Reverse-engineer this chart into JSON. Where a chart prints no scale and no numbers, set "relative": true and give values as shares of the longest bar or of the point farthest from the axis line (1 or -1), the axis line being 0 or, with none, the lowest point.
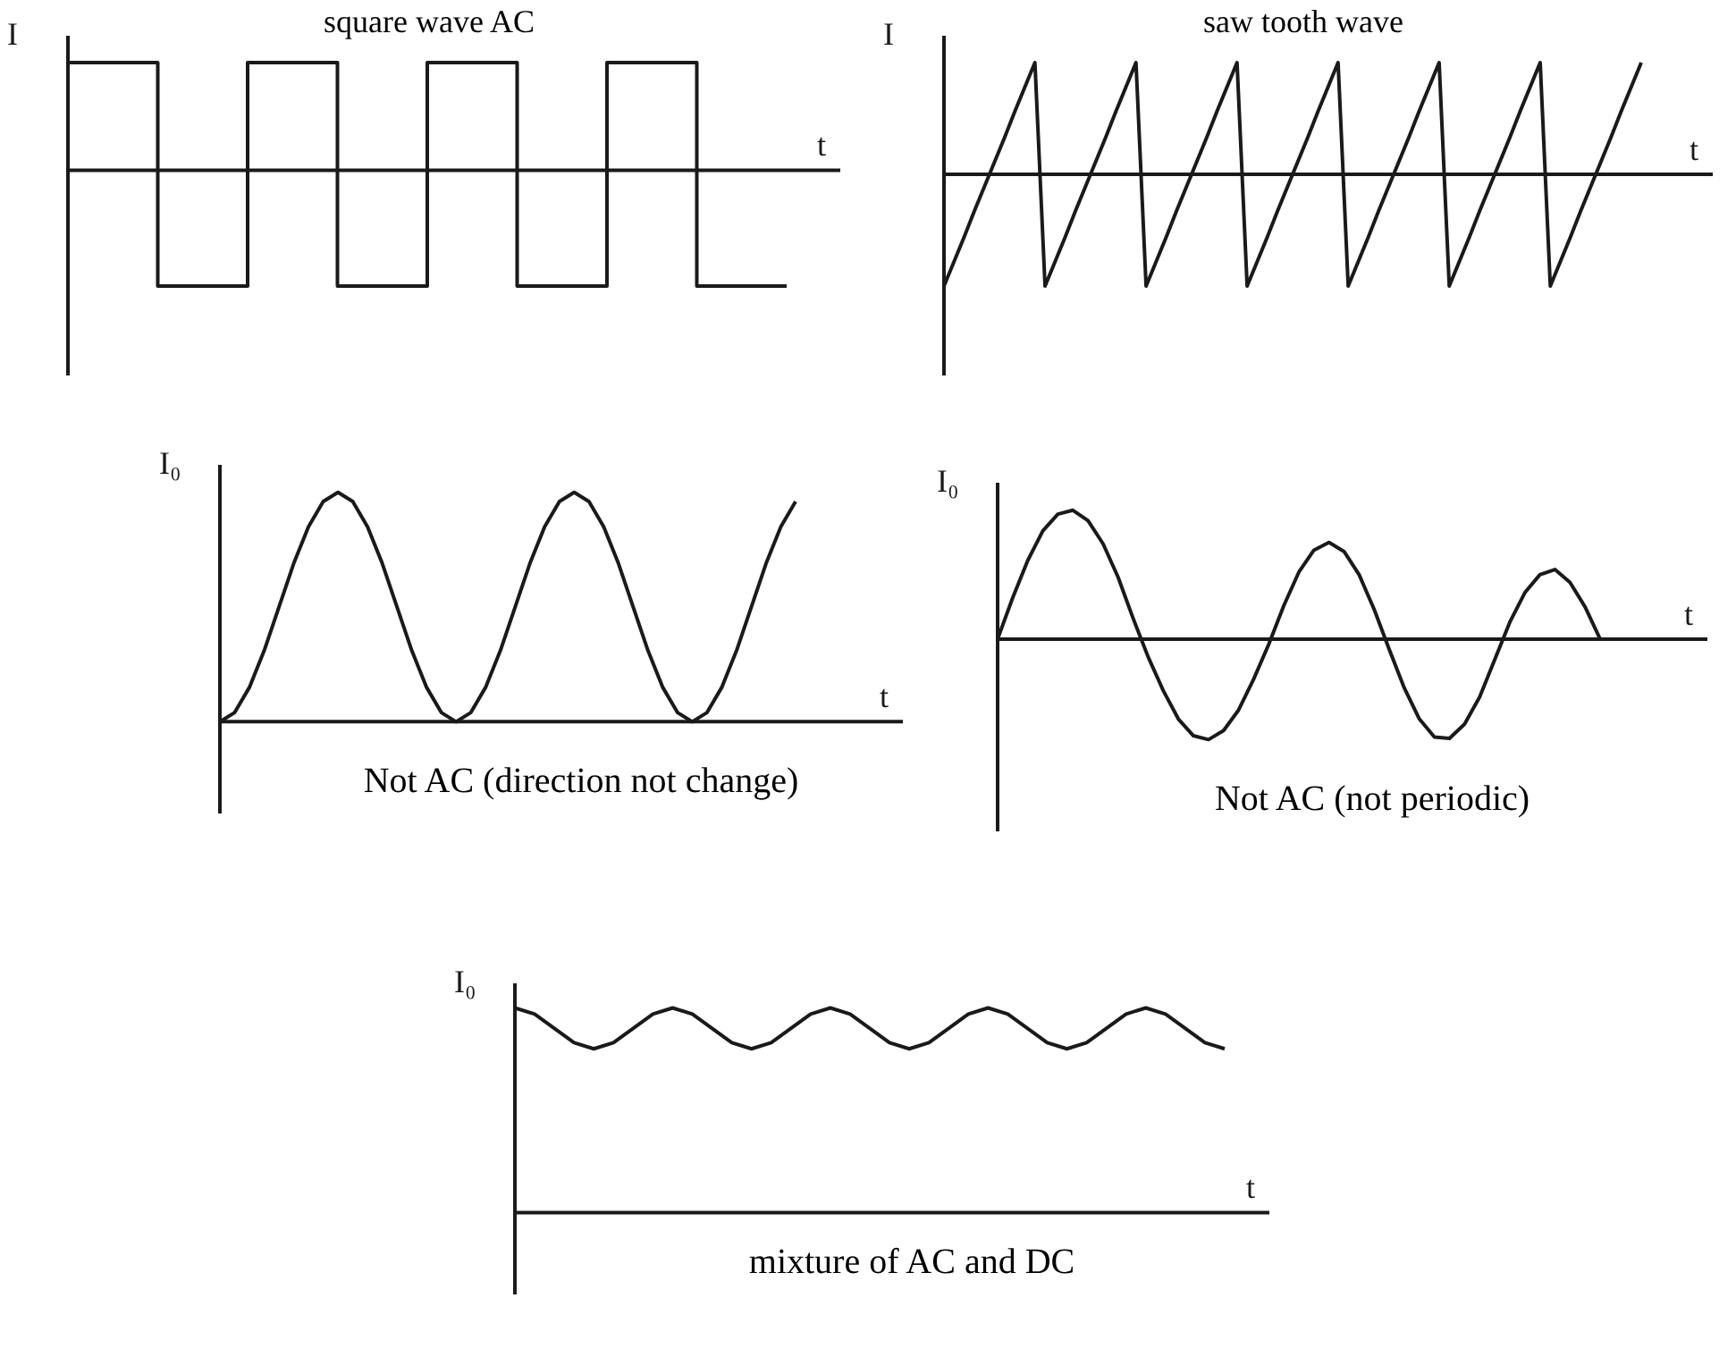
{
  "chart_data": [
    {
      "type": "step",
      "title": "square wave AC",
      "xlabel": "t",
      "ylabel": "I",
      "relative": true,
      "categories": [
        null,
        null,
        null,
        null,
        null,
        null,
        null,
        null,
        null
      ],
      "series": [
        {
          "color": "#1a1a1a",
          "values": [
            0.93,
            -1,
            0.93,
            -1,
            0.93,
            -1,
            0.93,
            -1,
            -1
          ]
        }
      ]
    },
    {
      "type": "line",
      "title": "saw tooth wave",
      "xlabel": "t",
      "ylabel": "I",
      "relative": true,
      "categories": [
        null,
        null,
        null,
        null,
        null,
        null,
        null,
        null,
        null,
        null,
        null,
        null,
        null,
        null,
        null,
        null,
        null,
        null,
        null,
        null,
        null,
        null,
        null,
        null,
        null,
        null,
        null,
        null,
        null,
        null,
        null,
        null,
        null,
        null,
        null,
        null,
        null,
        null,
        null,
        null,
        null,
        null,
        null,
        null,
        null,
        null,
        null,
        null,
        null,
        null,
        null,
        null,
        null,
        null,
        null,
        null,
        null,
        null,
        null,
        null,
        null,
        null,
        null,
        null,
        null,
        null,
        null,
        null,
        null,
        null
      ],
      "series": [
        {
          "color": "#1a1a1a",
          "values": [
            -1,
            -0.78,
            -0.56,
            -0.33,
            -0.11,
            0.11,
            0.33,
            0.56,
            0.78,
            1,
            -1,
            -0.78,
            -0.56,
            -0.33,
            -0.11,
            0.11,
            0.33,
            0.56,
            0.78,
            1,
            -1,
            -0.78,
            -0.56,
            -0.33,
            -0.11,
            0.11,
            0.33,
            0.56,
            0.78,
            1,
            -1,
            -0.78,
            -0.56,
            -0.33,
            -0.11,
            0.11,
            0.33,
            0.56,
            0.78,
            1,
            -1,
            -0.78,
            -0.56,
            -0.33,
            -0.11,
            0.11,
            0.33,
            0.56,
            0.78,
            1,
            -1,
            -0.78,
            -0.56,
            -0.33,
            -0.11,
            0.11,
            0.33,
            0.56,
            0.78,
            1,
            -1,
            -0.78,
            -0.56,
            -0.33,
            -0.11,
            0.11,
            0.33,
            0.56,
            0.78,
            1
          ]
        }
      ]
    },
    {
      "type": "line",
      "xlabel": "t",
      "ylabel": "I₀",
      "annotations": [
        "Not AC (direction not change)"
      ],
      "relative": true,
      "categories": [
        null,
        null,
        null,
        null,
        null,
        null,
        null,
        null,
        null,
        null,
        null,
        null,
        null,
        null,
        null,
        null,
        null,
        null,
        null,
        null,
        null,
        null,
        null,
        null,
        null,
        null,
        null,
        null,
        null,
        null,
        null,
        null,
        null,
        null,
        null,
        null,
        null,
        null,
        null,
        null
      ],
      "series": [
        {
          "color": "#1a1a1a",
          "values": [
            0,
            0.04,
            0.15,
            0.31,
            0.5,
            0.69,
            0.85,
            0.96,
            1,
            0.96,
            0.85,
            0.69,
            0.5,
            0.31,
            0.15,
            0.04,
            0,
            0.04,
            0.15,
            0.31,
            0.5,
            0.69,
            0.85,
            0.96,
            1,
            0.96,
            0.85,
            0.69,
            0.5,
            0.31,
            0.15,
            0.04,
            0,
            0.04,
            0.15,
            0.31,
            0.5,
            0.69,
            0.85,
            0.96
          ]
        }
      ]
    },
    {
      "type": "line",
      "xlabel": "t",
      "ylabel": "I₀",
      "annotations": [
        "Not AC (not periodic)"
      ],
      "relative": true,
      "categories": [
        null,
        null,
        null,
        null,
        null,
        null,
        null,
        null,
        null,
        null,
        null,
        null,
        null,
        null,
        null,
        null,
        null,
        null,
        null,
        null,
        null,
        null,
        null,
        null,
        null,
        null,
        null,
        null,
        null,
        null,
        null,
        null,
        null,
        null,
        null,
        null,
        null,
        null,
        null,
        null,
        null
      ],
      "series": [
        {
          "color": "#1a1a1a",
          "values": [
            0,
            0.32,
            0.61,
            0.84,
            0.97,
            1,
            0.92,
            0.74,
            0.48,
            0.16,
            -0.14,
            -0.4,
            -0.62,
            -0.75,
            -0.78,
            -0.71,
            -0.55,
            -0.31,
            -0.04,
            0.26,
            0.52,
            0.69,
            0.75,
            0.68,
            0.5,
            0.23,
            -0.08,
            -0.38,
            -0.62,
            -0.76,
            -0.77,
            -0.66,
            -0.45,
            -0.16,
            0.13,
            0.36,
            0.5,
            0.54,
            0.44,
            0.25,
            0
          ]
        }
      ]
    },
    {
      "type": "line",
      "xlabel": "t",
      "ylabel": "I₀",
      "annotations": [
        "mixture of AC and DC"
      ],
      "relative": true,
      "categories": [
        null,
        null,
        null,
        null,
        null,
        null,
        null,
        null,
        null,
        null,
        null,
        null,
        null,
        null,
        null,
        null,
        null,
        null,
        null,
        null,
        null,
        null,
        null,
        null,
        null,
        null,
        null,
        null,
        null,
        null,
        null,
        null,
        null,
        null,
        null,
        null,
        null
      ],
      "series": [
        {
          "color": "#1a1a1a",
          "values": [
            1,
            0.97,
            0.9,
            0.83,
            0.8,
            0.83,
            0.9,
            0.97,
            1,
            0.97,
            0.9,
            0.83,
            0.8,
            0.83,
            0.9,
            0.97,
            1,
            0.97,
            0.9,
            0.83,
            0.8,
            0.83,
            0.9,
            0.97,
            1,
            0.97,
            0.9,
            0.83,
            0.8,
            0.83,
            0.9,
            0.97,
            1,
            0.97,
            0.9,
            0.83,
            0.8
          ]
        }
      ]
    }
  ]
}
